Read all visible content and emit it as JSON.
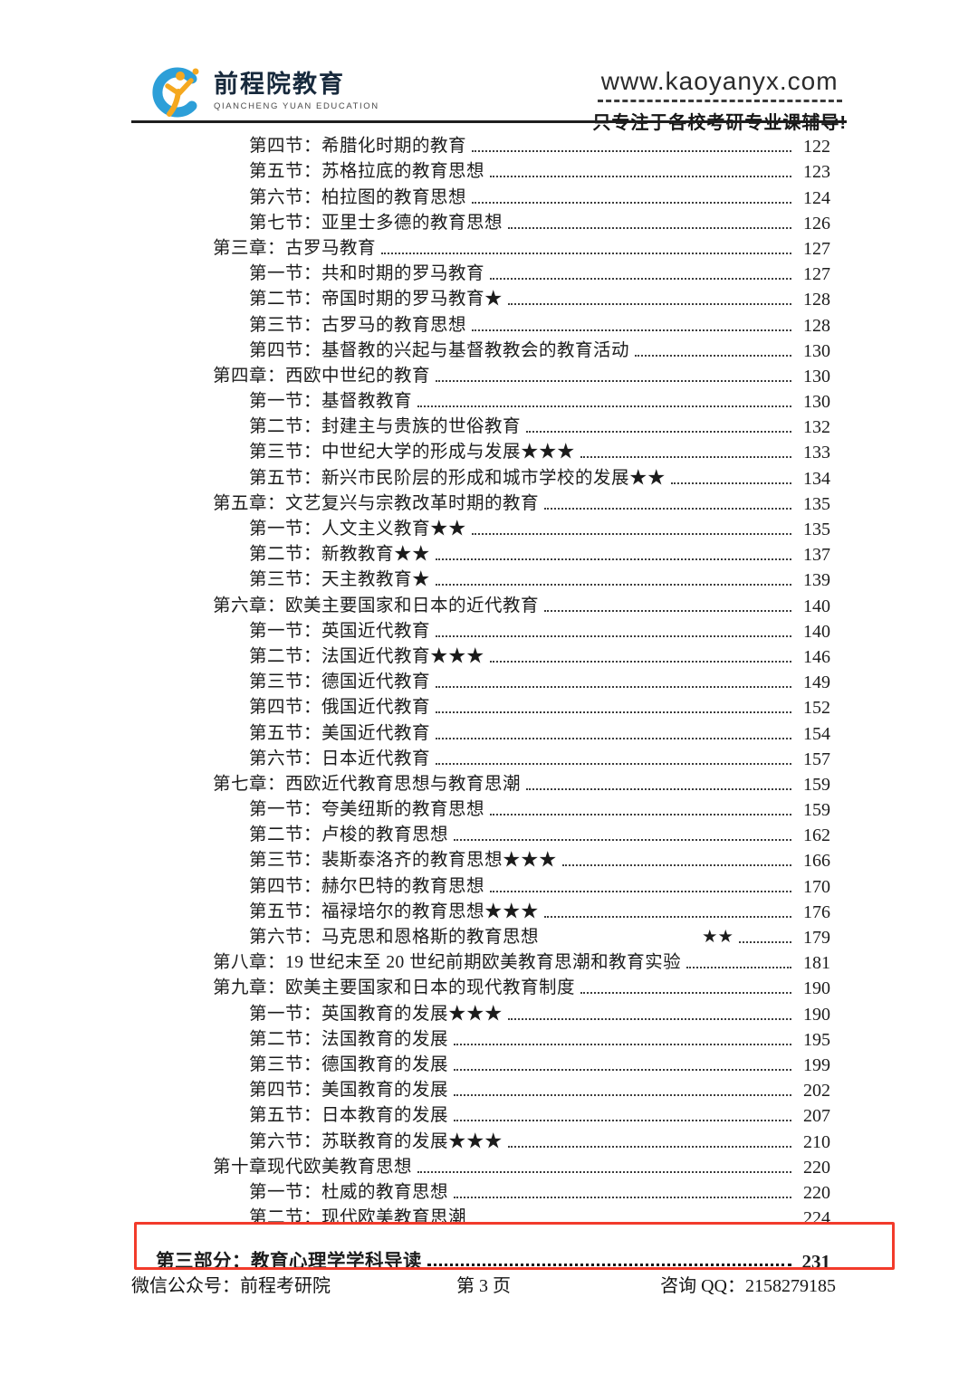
{
  "header": {
    "brand_cn": "前程院教育",
    "brand_en": "QIANCHENG YUAN EDUCATION",
    "website": "www.kaoyanyx.com",
    "slogan": "只专注于各校考研专业课辅导!"
  },
  "colors": {
    "accent_red": "#f23b2b",
    "logo_blue": "#2d9fd8",
    "logo_yellow": "#f5a81f",
    "text": "#1c1c1c"
  },
  "toc": {
    "entries": [
      {
        "level": "section",
        "label": "第四节：希腊化时期的教育",
        "page": "122"
      },
      {
        "level": "section",
        "label": "第五节：苏格拉底的教育思想",
        "page": "123"
      },
      {
        "level": "section",
        "label": "第六节：柏拉图的教育思想",
        "page": "124"
      },
      {
        "level": "section",
        "label": "第七节：亚里士多德的教育思想",
        "page": "126"
      },
      {
        "level": "chapter",
        "label": "第三章：古罗马教育",
        "page": "127"
      },
      {
        "level": "section",
        "label": "第一节：共和时期的罗马教育",
        "page": "127"
      },
      {
        "level": "section",
        "label": "第二节：帝国时期的罗马教育★",
        "page": "128"
      },
      {
        "level": "section",
        "label": "第三节：古罗马的教育思想",
        "page": "128"
      },
      {
        "level": "section",
        "label": "第四节：基督教的兴起与基督教教会的教育活动",
        "page": "130"
      },
      {
        "level": "chapter",
        "label": "第四章：西欧中世纪的教育",
        "page": "130"
      },
      {
        "level": "section",
        "label": "第一节：基督教教育",
        "page": "130"
      },
      {
        "level": "section",
        "label": "第二节：封建主与贵族的世俗教育",
        "page": "132"
      },
      {
        "level": "section",
        "label": "第三节：中世纪大学的形成与发展★★★",
        "page": "133"
      },
      {
        "level": "section",
        "label": "第五节：新兴市民阶层的形成和城市学校的发展★★",
        "page": "134"
      },
      {
        "level": "chapter",
        "label": "第五章：文艺复兴与宗教改革时期的教育",
        "page": "135"
      },
      {
        "level": "section",
        "label": "第一节：人文主义教育★★",
        "page": "135"
      },
      {
        "level": "section",
        "label": "第二节：新教教育★★",
        "page": "137"
      },
      {
        "level": "section",
        "label": "第三节：天主教教育★",
        "page": "139"
      },
      {
        "level": "chapter",
        "label": "第六章：欧美主要国家和日本的近代教育",
        "page": "140"
      },
      {
        "level": "section",
        "label": "第一节：英国近代教育",
        "page": "140"
      },
      {
        "level": "section",
        "label": "第二节：法国近代教育★★★",
        "page": "146"
      },
      {
        "level": "section",
        "label": "第三节：德国近代教育",
        "page": "149"
      },
      {
        "level": "section",
        "label": "第四节：俄国近代教育",
        "page": "152"
      },
      {
        "level": "section",
        "label": "第五节：美国近代教育",
        "page": "154"
      },
      {
        "level": "section",
        "label": "第六节：日本近代教育",
        "page": "157"
      },
      {
        "level": "chapter",
        "label": "第七章：西欧近代教育思想与教育思潮",
        "page": "159"
      },
      {
        "level": "section",
        "label": "第一节：夸美纽斯的教育思想",
        "page": "159"
      },
      {
        "level": "section",
        "label": "第二节：卢梭的教育思想",
        "page": "162"
      },
      {
        "level": "section",
        "label": "第三节：裴斯泰洛齐的教育思想★★★",
        "page": "166"
      },
      {
        "level": "section",
        "label": "第四节：赫尔巴特的教育思想",
        "page": "170"
      },
      {
        "level": "section",
        "label": "第五节：福禄培尔的教育思想★★★",
        "page": "176"
      },
      {
        "level": "section",
        "label": "第六节：马克思和恩格斯的教育思想",
        "stars_detached": "★★",
        "page": "179"
      },
      {
        "level": "chapter",
        "label": "第八章：19 世纪末至 20 世纪前期欧美教育思潮和教育实验",
        "page": "181"
      },
      {
        "level": "chapter",
        "label": "第九章：欧美主要国家和日本的现代教育制度",
        "page": "190"
      },
      {
        "level": "section",
        "label": "第一节：英国教育的发展★★★",
        "page": "190"
      },
      {
        "level": "section",
        "label": "第二节：法国教育的发展",
        "page": "195"
      },
      {
        "level": "section",
        "label": "第三节：德国教育的发展",
        "page": "199"
      },
      {
        "level": "section",
        "label": "第四节：美国教育的发展",
        "page": "202"
      },
      {
        "level": "section",
        "label": "第五节：日本教育的发展",
        "page": "207"
      },
      {
        "level": "section",
        "label": "第六节：苏联教育的发展★★★",
        "page": "210"
      },
      {
        "level": "chapter",
        "label": "第十章现代欧美教育思想",
        "page": "220"
      },
      {
        "level": "section",
        "label": "第一节：杜威的教育思想",
        "page": "220"
      },
      {
        "level": "section",
        "label": "第二节：现代欧美教育思潮",
        "page": "224"
      },
      {
        "level": "part",
        "label": "第三部分：教育心理学学科导读",
        "page": "231"
      }
    ]
  },
  "footer": {
    "wechat": "微信公众号：前程考研院",
    "page_indicator": "第 3 页",
    "qq": "咨询 QQ：2158279185"
  }
}
